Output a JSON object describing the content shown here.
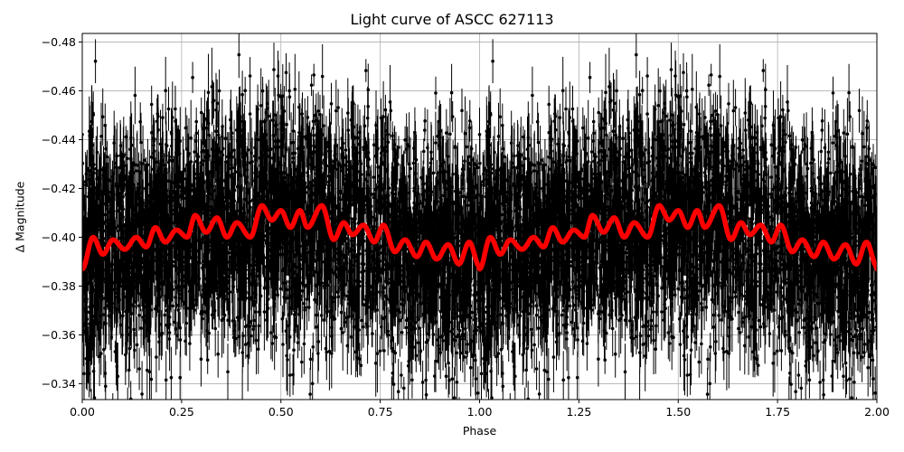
{
  "figure": {
    "title": "Light curve of ASCC 627113",
    "xlabel": "Phase",
    "ylabel": "Δ Magnitude"
  },
  "axes": {
    "x_ticks": [
      "0.00",
      "0.25",
      "0.50",
      "0.75",
      "1.00",
      "1.25",
      "1.50",
      "1.75",
      "2.00"
    ],
    "y_ticks": [
      "−0.48",
      "−0.46",
      "−0.44",
      "−0.42",
      "−0.40",
      "−0.38",
      "−0.36",
      "−0.34"
    ]
  },
  "colors": {
    "data_points": "#000000",
    "model_curve": "#ff0000",
    "grid": "#b0b0b0",
    "axes": "#000000",
    "background": "#ffffff"
  },
  "chart_data": {
    "type": "scatter",
    "title": "Light curve of ASCC 627113",
    "xlabel": "Phase",
    "ylabel": "Δ Magnitude",
    "xlim": [
      0.0,
      2.0
    ],
    "ylim": [
      -0.3335,
      -0.4835
    ],
    "y_inverted": true,
    "grid": true,
    "legend": null,
    "x_ticks": [
      0.0,
      0.25,
      0.5,
      0.75,
      1.0,
      1.25,
      1.5,
      1.75,
      2.0
    ],
    "y_ticks": [
      -0.48,
      -0.46,
      -0.44,
      -0.42,
      -0.4,
      -0.38,
      -0.36,
      -0.34
    ],
    "series": [
      {
        "name": "observations",
        "type": "errorbar-scatter",
        "color": "#000000",
        "description": "Dense phase-folded photometry with error bars, scattered roughly between -0.34 and -0.48, centered near -0.40; repeated over phase 0-1 and 1-2",
        "approx_center": -0.4,
        "approx_range": [
          -0.335,
          -0.485
        ]
      },
      {
        "name": "model",
        "type": "line",
        "color": "#ff0000",
        "linewidth": 5,
        "x": [
          0.0,
          0.027,
          0.052,
          0.077,
          0.107,
          0.136,
          0.161,
          0.184,
          0.209,
          0.237,
          0.264,
          0.284,
          0.312,
          0.339,
          0.364,
          0.389,
          0.423,
          0.452,
          0.477,
          0.5,
          0.524,
          0.548,
          0.567,
          0.603,
          0.633,
          0.658,
          0.68,
          0.708,
          0.735,
          0.758,
          0.787,
          0.812,
          0.842,
          0.865,
          0.892,
          0.921,
          0.948,
          0.974,
          1.0
        ],
        "y": [
          -0.387,
          -0.4,
          -0.393,
          -0.399,
          -0.395,
          -0.4,
          -0.396,
          -0.404,
          -0.398,
          -0.403,
          -0.4,
          -0.409,
          -0.402,
          -0.408,
          -0.4,
          -0.406,
          -0.4,
          -0.413,
          -0.407,
          -0.411,
          -0.404,
          -0.411,
          -0.404,
          -0.413,
          -0.399,
          -0.406,
          -0.401,
          -0.405,
          -0.398,
          -0.405,
          -0.394,
          -0.399,
          -0.392,
          -0.398,
          -0.391,
          -0.397,
          -0.389,
          -0.398,
          -0.388
        ],
        "periodic_repeat": true,
        "repeat_period": 1.0
      }
    ]
  }
}
